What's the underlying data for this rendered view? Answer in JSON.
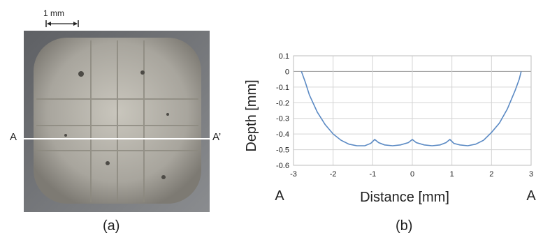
{
  "figure": {
    "scale_bar_label": "1 mm",
    "section_left": "A",
    "section_right": "A’",
    "panel_a_label": "(a)",
    "panel_b_label": "(b)"
  },
  "chart_data": {
    "type": "line",
    "xlabel": "Distance [mm]",
    "ylabel": "Depth  [mm]",
    "xlim": [
      -3,
      3
    ],
    "ylim": [
      -0.6,
      0.1
    ],
    "xticks": [
      "-3",
      "-2",
      "-1",
      "0",
      "1",
      "2",
      "3"
    ],
    "yticks": [
      "0.1",
      "0",
      "-0.1",
      "-0.2",
      "-0.3",
      "-0.4",
      "-0.5",
      "-0.6"
    ],
    "grid": true,
    "x_end_labels": [
      "A",
      "A"
    ],
    "line_color": "#5b8ac4",
    "series": [
      {
        "x": [
          -2.8,
          -2.7,
          -2.6,
          -2.4,
          -2.2,
          -2.0,
          -1.8,
          -1.6,
          -1.4,
          -1.2,
          -1.05,
          -0.95,
          -0.85,
          -0.7,
          -0.5,
          -0.3,
          -0.1,
          0.0,
          0.1,
          0.3,
          0.5,
          0.7,
          0.85,
          0.95,
          1.05,
          1.2,
          1.4,
          1.6,
          1.8,
          2.0,
          2.2,
          2.4,
          2.6,
          2.7,
          2.75
        ],
        "y": [
          0.0,
          -0.07,
          -0.15,
          -0.26,
          -0.34,
          -0.4,
          -0.44,
          -0.465,
          -0.475,
          -0.475,
          -0.46,
          -0.435,
          -0.455,
          -0.47,
          -0.475,
          -0.47,
          -0.455,
          -0.435,
          -0.455,
          -0.47,
          -0.475,
          -0.47,
          -0.455,
          -0.435,
          -0.46,
          -0.47,
          -0.475,
          -0.465,
          -0.44,
          -0.39,
          -0.33,
          -0.24,
          -0.12,
          -0.05,
          0.0
        ]
      }
    ]
  }
}
